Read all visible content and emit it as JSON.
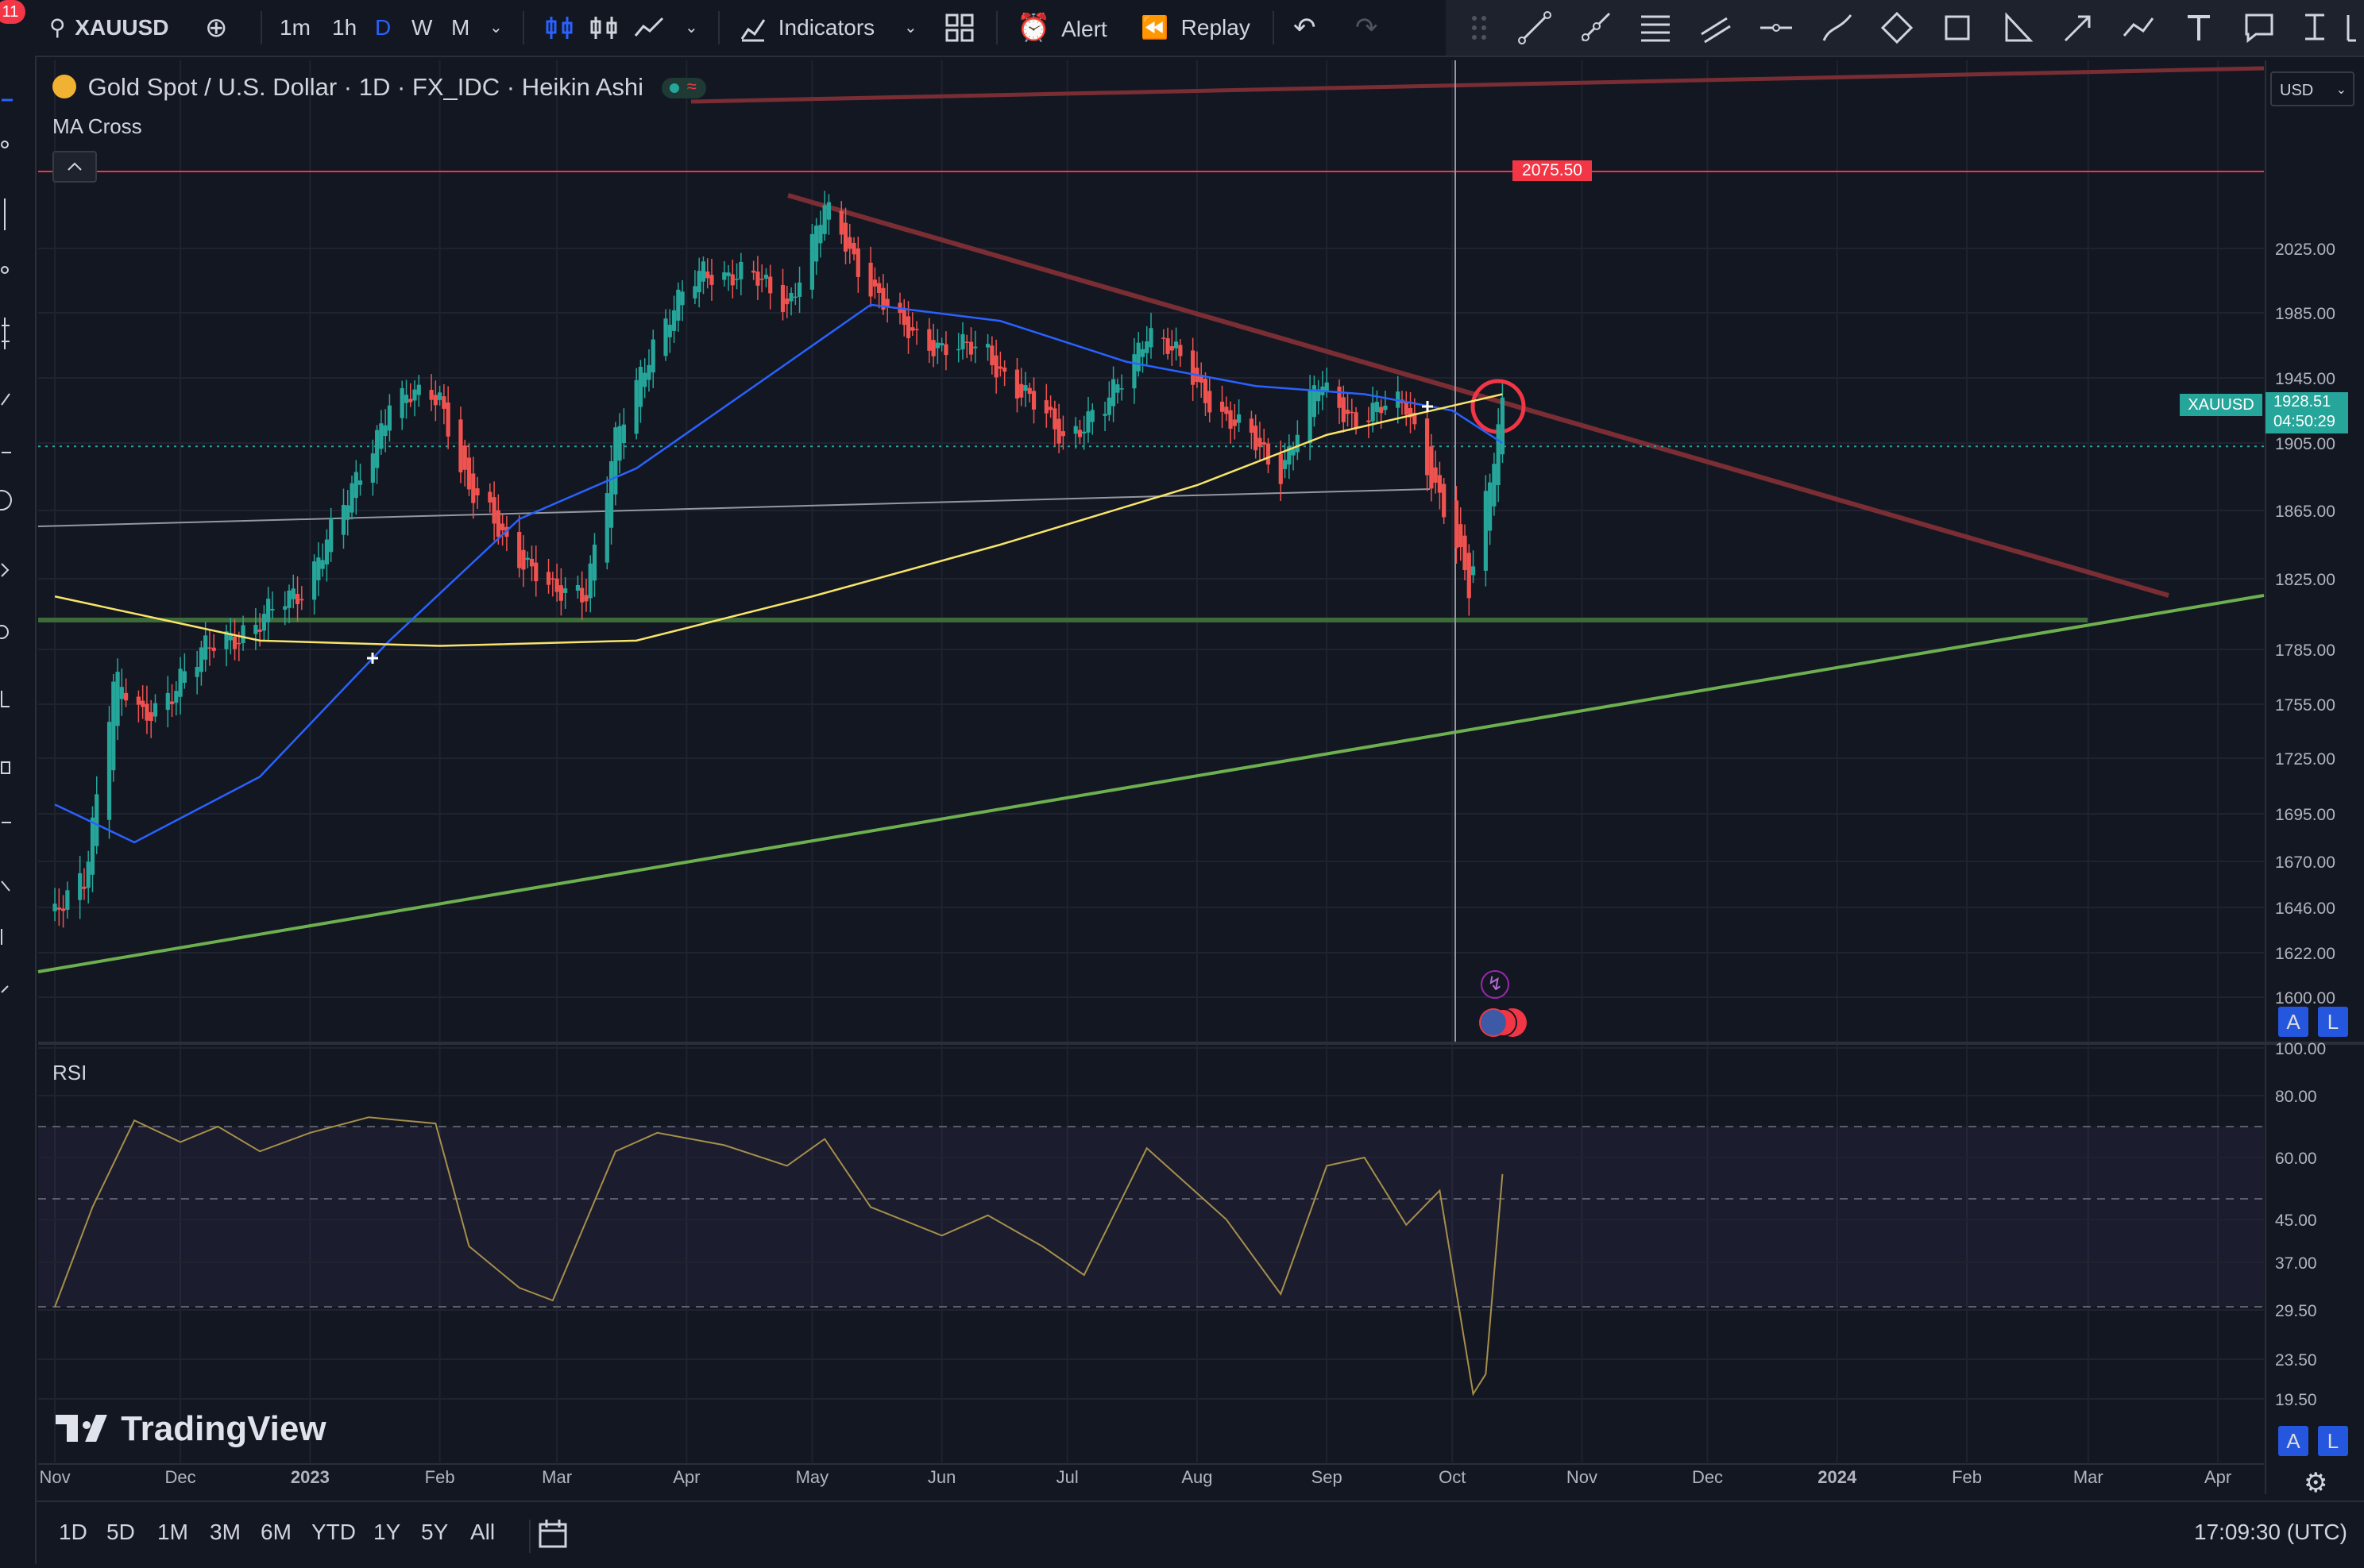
{
  "toolbar": {
    "notification_count": "11",
    "symbol": "XAUUSD",
    "intervals": [
      "1m",
      "1h",
      "D",
      "W",
      "M"
    ],
    "active_interval": "D",
    "indicators_label": "Indicators",
    "alert_label": "Alert",
    "replay_label": "Replay"
  },
  "legend": {
    "title": "Gold Spot / U.S. Dollar · 1D · FX_IDC · Heikin Ashi",
    "ma_label": "MA Cross",
    "rsi_label": "RSI"
  },
  "price_axis": {
    "currency": "USD",
    "resistance_label": "2075.50",
    "symbol_tag": "XAUUSD",
    "last_price": "1928.51",
    "countdown": "04:50:29"
  },
  "bottom": {
    "ranges": [
      "1D",
      "5D",
      "1M",
      "3M",
      "6M",
      "YTD",
      "1Y",
      "5Y",
      "All"
    ],
    "clock": "17:09:30 (UTC)"
  },
  "brand": "TradingView",
  "scale_buttons": {
    "auto": "A",
    "log": "L"
  },
  "colors": {
    "up": "#26a69a",
    "down": "#ef5350",
    "ma_fast": "#2962ff",
    "ma_slow": "#f7e46a",
    "rsi": "#a68f4a",
    "trend_down": "#7a2e34",
    "trend_up": "#6db04f",
    "support": "#3d6b3a"
  },
  "chart_data": [
    {
      "type": "candlestick",
      "style": "Heikin Ashi",
      "x_ticks": [
        "Nov",
        "Dec",
        "2023",
        "Feb",
        "Mar",
        "Apr",
        "May",
        "Jun",
        "Jul",
        "Aug",
        "Sep",
        "Oct",
        "Nov",
        "Dec",
        "2024",
        "Feb",
        "Mar",
        "Apr"
      ],
      "y_ticks": [
        2025.0,
        1985.0,
        1945.0,
        1905.0,
        1865.0,
        1825.0,
        1785.0,
        1755.0,
        1725.0,
        1695.0,
        1670.0,
        1646.0,
        1622.0,
        1600.0
      ],
      "y_tick_labels": [
        "2025.00",
        "1985.00",
        "1945.00",
        "1905.00",
        "1865.00",
        "1825.00",
        "1785.00",
        "1755.00",
        "1725.00",
        "1695.00",
        "1670.00",
        "1646.00",
        "1622.00",
        "1600.00"
      ],
      "ylim": [
        1595,
        2095
      ],
      "log_scale": true,
      "close_path": [
        [
          "2022-11-01",
          1640
        ],
        [
          "2022-11-08",
          1660
        ],
        [
          "2022-11-15",
          1770
        ],
        [
          "2022-11-22",
          1745
        ],
        [
          "2022-12-01",
          1770
        ],
        [
          "2022-12-10",
          1790
        ],
        [
          "2022-12-20",
          1800
        ],
        [
          "2022-12-30",
          1820
        ],
        [
          "2023-01-10",
          1870
        ],
        [
          "2023-01-20",
          1930
        ],
        [
          "2023-02-01",
          1935
        ],
        [
          "2023-02-08",
          1875
        ],
        [
          "2023-02-20",
          1840
        ],
        [
          "2023-02-28",
          1815
        ],
        [
          "2023-03-08",
          1820
        ],
        [
          "2023-03-15",
          1905
        ],
        [
          "2023-03-25",
          1975
        ],
        [
          "2023-04-05",
          2010
        ],
        [
          "2023-04-15",
          2010
        ],
        [
          "2023-04-25",
          1990
        ],
        [
          "2023-05-04",
          2050
        ],
        [
          "2023-05-12",
          2015
        ],
        [
          "2023-05-22",
          1975
        ],
        [
          "2023-06-01",
          1965
        ],
        [
          "2023-06-12",
          1960
        ],
        [
          "2023-06-22",
          1930
        ],
        [
          "2023-06-30",
          1910
        ],
        [
          "2023-07-10",
          1925
        ],
        [
          "2023-07-20",
          1975
        ],
        [
          "2023-07-28",
          1955
        ],
        [
          "2023-08-08",
          1920
        ],
        [
          "2023-08-21",
          1890
        ],
        [
          "2023-08-30",
          1940
        ],
        [
          "2023-09-08",
          1920
        ],
        [
          "2023-09-20",
          1930
        ],
        [
          "2023-09-28",
          1870
        ],
        [
          "2023-10-05",
          1820
        ],
        [
          "2023-10-13",
          1928.51
        ]
      ],
      "ma_fast_path": [
        [
          "2022-11-01",
          1700
        ],
        [
          "2022-11-20",
          1680
        ],
        [
          "2022-12-20",
          1715
        ],
        [
          "2023-01-20",
          1790
        ],
        [
          "2023-02-20",
          1860
        ],
        [
          "2023-03-20",
          1890
        ],
        [
          "2023-04-20",
          1945
        ],
        [
          "2023-05-15",
          1990
        ],
        [
          "2023-06-15",
          1980
        ],
        [
          "2023-07-15",
          1955
        ],
        [
          "2023-08-15",
          1940
        ],
        [
          "2023-09-10",
          1935
        ],
        [
          "2023-10-01",
          1925
        ],
        [
          "2023-10-13",
          1905
        ]
      ],
      "ma_slow_path": [
        [
          "2022-11-01",
          1815
        ],
        [
          "2022-12-20",
          1790
        ],
        [
          "2023-02-01",
          1787
        ],
        [
          "2023-03-20",
          1790
        ],
        [
          "2023-05-01",
          1815
        ],
        [
          "2023-06-15",
          1845
        ],
        [
          "2023-08-01",
          1880
        ],
        [
          "2023-09-01",
          1910
        ],
        [
          "2023-10-13",
          1935
        ]
      ]
    },
    {
      "type": "line",
      "name": "RSI",
      "y_ticks": [
        100.0,
        80.0,
        60.0,
        45.0,
        37.0,
        29.5,
        23.5,
        19.5
      ],
      "y_tick_labels": [
        "100.00",
        "80.00",
        "60.00",
        "45.00",
        "37.00",
        "29.50",
        "23.50",
        "19.50"
      ],
      "bands": [
        70,
        50,
        30
      ],
      "values": [
        [
          "2022-11-01",
          30
        ],
        [
          "2022-11-10",
          48
        ],
        [
          "2022-11-20",
          72
        ],
        [
          "2022-12-01",
          65
        ],
        [
          "2022-12-10",
          70
        ],
        [
          "2022-12-20",
          62
        ],
        [
          "2023-01-01",
          68
        ],
        [
          "2023-01-15",
          73
        ],
        [
          "2023-01-31",
          71
        ],
        [
          "2023-02-08",
          40
        ],
        [
          "2023-02-20",
          33
        ],
        [
          "2023-02-28",
          31
        ],
        [
          "2023-03-15",
          62
        ],
        [
          "2023-03-25",
          68
        ],
        [
          "2023-04-10",
          64
        ],
        [
          "2023-04-25",
          58
        ],
        [
          "2023-05-04",
          66
        ],
        [
          "2023-05-15",
          48
        ],
        [
          "2023-06-01",
          42
        ],
        [
          "2023-06-12",
          46
        ],
        [
          "2023-06-25",
          40
        ],
        [
          "2023-07-05",
          35
        ],
        [
          "2023-07-20",
          63
        ],
        [
          "2023-07-28",
          55
        ],
        [
          "2023-08-08",
          45
        ],
        [
          "2023-08-21",
          32
        ],
        [
          "2023-09-01",
          58
        ],
        [
          "2023-09-10",
          60
        ],
        [
          "2023-09-20",
          44
        ],
        [
          "2023-09-28",
          52
        ],
        [
          "2023-10-06",
          20
        ],
        [
          "2023-10-09",
          22
        ],
        [
          "2023-10-13",
          56
        ]
      ]
    }
  ]
}
